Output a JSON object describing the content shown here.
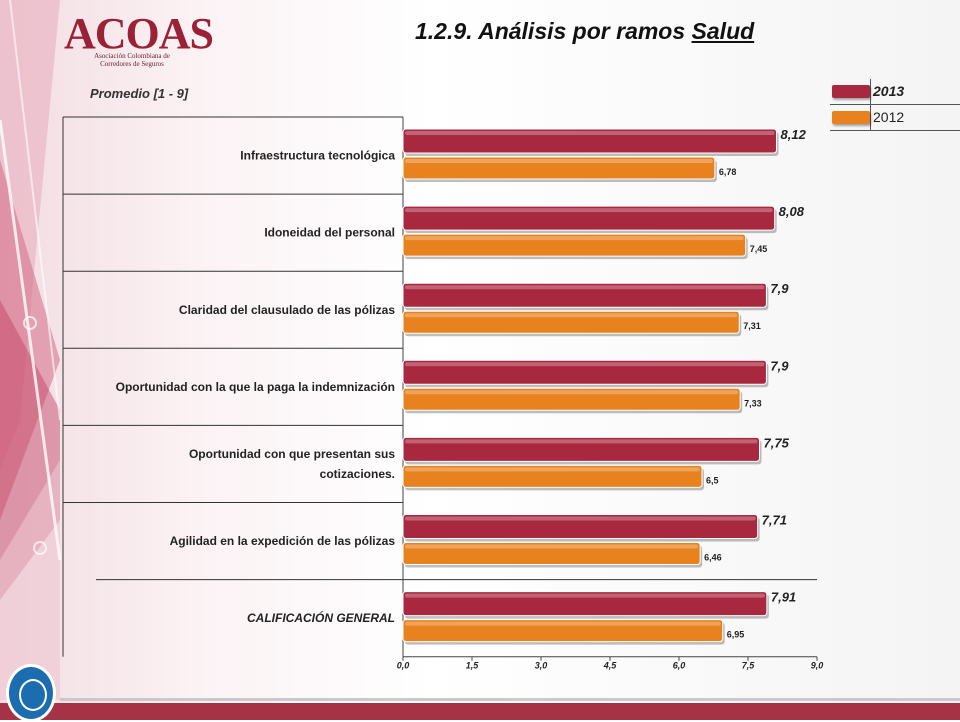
{
  "header": {
    "logo_text": "ACOAS",
    "logo_subtitle": "Asociación Colombiana de Corredores de Seguros",
    "title_prefix": "1.2.9. Análisis por ramos ",
    "title_underlined": "Salud",
    "subtitle": "Promedio  [1 - 9]"
  },
  "colors": {
    "series_2013": "#a8283f",
    "series_2012": "#e8821e",
    "accent_pink": "#c9476a"
  },
  "legend": [
    {
      "label": "2013",
      "color": "#a8283f"
    },
    {
      "label": "2012",
      "color": "#e8821e"
    }
  ],
  "chart_data": {
    "type": "bar",
    "orientation": "horizontal",
    "categories": [
      "Infraestructura tecnológica",
      "Idoneidad del personal",
      "Claridad del clausulado de las pólizas",
      "Oportunidad con la que la paga la indemnización",
      "Oportunidad con que presentan sus cotizaciones.",
      "Agilidad en la expedición de las pólizas",
      "CALIFICACIÓN GENERAL"
    ],
    "series": [
      {
        "name": "2013",
        "values": [
          8.12,
          8.08,
          7.9,
          7.9,
          7.75,
          7.71,
          7.91
        ],
        "labels": [
          "8,12",
          "8,08",
          "7,9",
          "7,9",
          "7,75",
          "7,71",
          "7,91"
        ]
      },
      {
        "name": "2012",
        "values": [
          6.78,
          7.45,
          7.31,
          7.33,
          6.5,
          6.46,
          6.95
        ],
        "labels": [
          "6,78",
          "7,45",
          "7,31",
          "7,33",
          "6,5",
          "6,46",
          "6,95"
        ]
      }
    ],
    "xlim": [
      0,
      9
    ],
    "ticks": [
      0,
      1.5,
      3,
      4.5,
      6,
      7.5,
      9
    ],
    "tick_labels": [
      "0,0",
      "1,5",
      "3,0",
      "4,5",
      "6,0",
      "7,5",
      "9,0"
    ],
    "legend_position": "top-right"
  }
}
